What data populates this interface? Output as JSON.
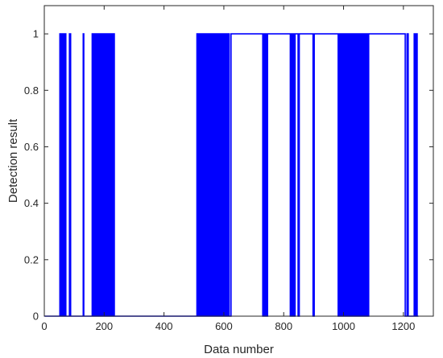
{
  "chart_data": {
    "type": "line",
    "title": "",
    "xlabel": "Data number",
    "ylabel": "Detection result",
    "xlim": [
      0,
      1300
    ],
    "ylim": [
      0,
      1.1
    ],
    "xticks": [
      0,
      200,
      400,
      600,
      800,
      1000,
      1200
    ],
    "yticks": [
      0,
      0.2,
      0.4,
      0.6,
      0.8,
      1
    ],
    "ytick_labels": [
      "0",
      "0.2",
      "0.4",
      "0.6",
      "0.8",
      "1"
    ],
    "grid": false,
    "line_color": "#0000ff",
    "series": [
      {
        "name": "",
        "segments_value_1": [
          [
            52,
            54
          ],
          [
            57,
            59
          ],
          [
            61,
            63
          ],
          [
            66,
            67
          ],
          [
            70,
            72
          ],
          [
            84,
            88
          ],
          [
            130,
            132
          ],
          [
            160,
            163
          ],
          [
            166,
            168
          ],
          [
            171,
            173
          ],
          [
            176,
            179
          ],
          [
            182,
            184
          ],
          [
            186,
            189
          ],
          [
            191,
            194
          ],
          [
            197,
            199
          ],
          [
            201,
            204
          ],
          [
            207,
            209
          ],
          [
            211,
            214
          ],
          [
            216,
            218
          ],
          [
            221,
            223
          ],
          [
            226,
            228
          ],
          [
            231,
            234
          ],
          [
            510,
            513
          ],
          [
            516,
            518
          ],
          [
            521,
            524
          ],
          [
            527,
            529
          ],
          [
            532,
            535
          ],
          [
            538,
            541
          ],
          [
            544,
            547
          ],
          [
            550,
            553
          ],
          [
            556,
            558
          ],
          [
            561,
            564
          ],
          [
            567,
            570
          ],
          [
            573,
            575
          ],
          [
            578,
            581
          ],
          [
            584,
            587
          ],
          [
            590,
            593
          ],
          [
            596,
            599
          ],
          [
            602,
            605
          ],
          [
            608,
            611
          ],
          [
            614,
            618
          ],
          [
            624,
            730
          ],
          [
            734,
            737
          ],
          [
            740,
            743
          ],
          [
            746,
            822
          ],
          [
            826,
            829
          ],
          [
            832,
            834
          ],
          [
            838,
            848
          ],
          [
            852,
            898
          ],
          [
            902,
            982
          ],
          [
            986,
            989
          ],
          [
            992,
            996
          ],
          [
            1000,
            1002
          ],
          [
            1006,
            1010
          ],
          [
            1014,
            1017
          ],
          [
            1020,
            1024
          ],
          [
            1028,
            1032
          ],
          [
            1036,
            1040
          ],
          [
            1044,
            1048
          ],
          [
            1052,
            1056
          ],
          [
            1060,
            1064
          ],
          [
            1068,
            1072
          ],
          [
            1076,
            1080
          ],
          [
            1084,
            1206
          ],
          [
            1212,
            1216
          ],
          [
            1236,
            1239
          ],
          [
            1242,
            1246
          ]
        ]
      }
    ]
  }
}
